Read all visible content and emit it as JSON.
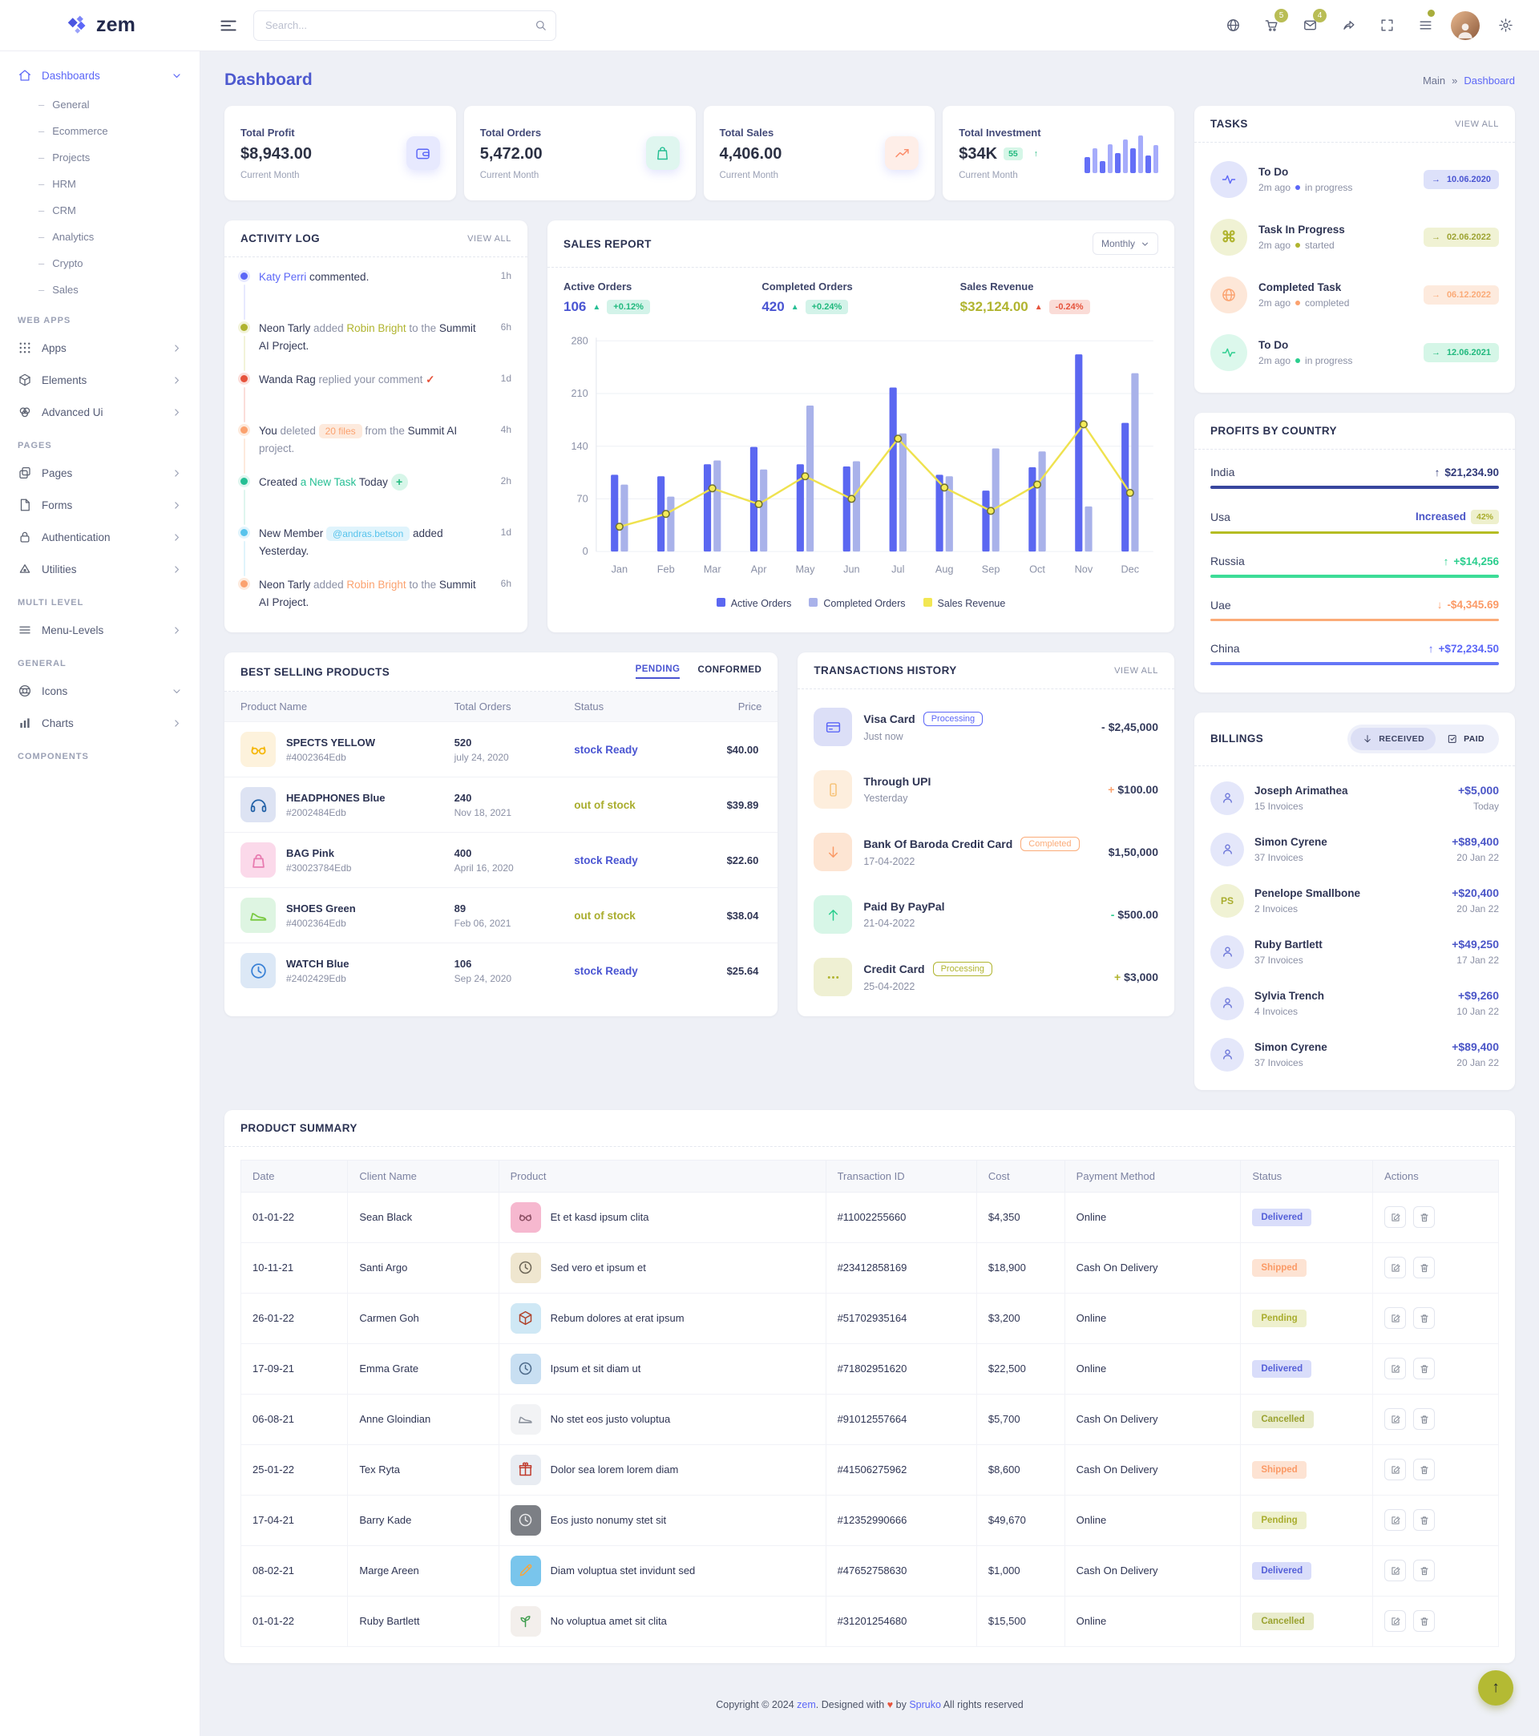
{
  "navbar": {
    "search_placeholder": "Search...",
    "badges": {
      "cart": "5",
      "mail": "4"
    }
  },
  "sidebar": {
    "brand": "zem",
    "groups": [
      {
        "label": "",
        "items": [
          {
            "label": "Dashboards",
            "icon": "home",
            "chevron": "down",
            "active": true,
            "children": [
              "General",
              "Ecommerce",
              "Projects",
              "HRM",
              "CRM",
              "Analytics",
              "Crypto",
              "Sales"
            ]
          }
        ]
      },
      {
        "label": "WEB APPS",
        "items": [
          {
            "label": "Apps",
            "icon": "grid",
            "chevron": "right"
          },
          {
            "label": "Elements",
            "icon": "cube",
            "chevron": "right"
          },
          {
            "label": "Advanced Ui",
            "icon": "venn",
            "chevron": "right"
          }
        ]
      },
      {
        "label": "PAGES",
        "items": [
          {
            "label": "Pages",
            "icon": "pages",
            "chevron": "right"
          },
          {
            "label": "Forms",
            "icon": "file",
            "chevron": "right"
          },
          {
            "label": "Authentication",
            "icon": "lock",
            "chevron": "right"
          },
          {
            "label": "Utilities",
            "icon": "utility",
            "chevron": "right"
          }
        ]
      },
      {
        "label": "MULTI LEVEL",
        "items": [
          {
            "label": "Menu-Levels",
            "icon": "menu",
            "chevron": "right"
          }
        ]
      },
      {
        "label": "GENERAL",
        "items": [
          {
            "label": "Icons",
            "icon": "sphere",
            "chevron": "down"
          },
          {
            "label": "Charts",
            "icon": "chart",
            "chevron": "right"
          }
        ]
      },
      {
        "label": "COMPONENTS",
        "items": []
      }
    ]
  },
  "page": {
    "title": "Dashboard",
    "breadcrumb_root": "Main",
    "breadcrumb_sep": "»",
    "breadcrumb_current": "Dashboard"
  },
  "stats": [
    {
      "label": "Total Profit",
      "value": "$8,943.00",
      "sub": "Current Month",
      "icon": "wallet",
      "color": "#5c67f7",
      "bg": "#e7e9fe"
    },
    {
      "label": "Total Orders",
      "value": "5,472.00",
      "sub": "Current Month",
      "icon": "bag",
      "color": "#26bf94",
      "bg": "#dff6ef"
    },
    {
      "label": "Total Sales",
      "value": "4,406.00",
      "sub": "Current Month",
      "icon": "trend",
      "color": "#fb8e6c",
      "bg": "#feeee8"
    },
    {
      "label": "Total Investment",
      "value": "$34K",
      "badge": "55",
      "badge_arrow": "↑",
      "sub": "Current Month",
      "icon": "minibars",
      "color": "#5c67f7",
      "bg": "#e7e9fe"
    }
  ],
  "minibars": [
    40,
    62,
    30,
    72,
    50,
    84,
    62,
    95,
    45,
    70
  ],
  "activity": {
    "title": "ACTIVITY LOG",
    "action": "VIEW ALL",
    "items": [
      {
        "time": "1h",
        "color": "#5c67f7",
        "bg": "#e7e9fe",
        "segments": [
          {
            "text": "Katy Perri",
            "style": "name"
          },
          {
            "text": " commented.",
            "style": "dark"
          }
        ]
      },
      {
        "time": "6h",
        "color": "#b0b42f",
        "bg": "#f2f3d9",
        "segments": [
          {
            "text": "Neon Tarly ",
            "style": "dark"
          },
          {
            "text": "added ",
            "style": "muted"
          },
          {
            "text": "Robin Bright",
            "style": "name"
          },
          {
            "text": " to the ",
            "style": "muted"
          },
          {
            "text": "Summit AI Project.",
            "style": "dark"
          }
        ]
      },
      {
        "time": "1d",
        "color": "#e6533c",
        "bg": "#fbdeda",
        "segments": [
          {
            "text": "Wanda Rag ",
            "style": "dark"
          },
          {
            "text": "replied your comment ",
            "style": "muted"
          },
          {
            "text": "✓",
            "style": "check"
          }
        ]
      },
      {
        "time": "4h",
        "color": "#fba26f",
        "bg": "#fdeadd",
        "segments": [
          {
            "text": "You ",
            "style": "dark"
          },
          {
            "text": "deleted ",
            "style": "muted"
          },
          {
            "text": "20 files",
            "style": "badge"
          },
          {
            "text": " from the ",
            "style": "muted"
          },
          {
            "text": "Summit AI",
            "style": "dark"
          },
          {
            "text": " project.",
            "style": "muted"
          }
        ]
      },
      {
        "time": "2h",
        "color": "#26bf94",
        "bg": "#dff6ef",
        "segments": [
          {
            "text": "Created ",
            "style": "dark"
          },
          {
            "text": "a New Task",
            "style": "name"
          },
          {
            "text": " Today ",
            "style": "dark"
          },
          {
            "text": "+",
            "style": "plus"
          }
        ]
      },
      {
        "time": "1d",
        "color": "#57c3ec",
        "bg": "#e0f4fc",
        "segments": [
          {
            "text": "New Member ",
            "style": "dark"
          },
          {
            "text": "@andras.betson",
            "style": "badge"
          },
          {
            "text": " added Yesterday.",
            "style": "dark"
          }
        ]
      },
      {
        "time": "6h",
        "color": "#fba26f",
        "bg": "#fdeadd",
        "segments": [
          {
            "text": "Neon Tarly ",
            "style": "dark"
          },
          {
            "text": "added ",
            "style": "muted"
          },
          {
            "text": "Robin Bright",
            "style": "name"
          },
          {
            "text": " to the ",
            "style": "muted"
          },
          {
            "text": "Summit AI Project.",
            "style": "dark"
          }
        ]
      }
    ]
  },
  "sales_report": {
    "title": "SALES REPORT",
    "dropdown": "Monthly",
    "kpis": [
      {
        "label": "Active Orders",
        "value": "106",
        "value_color": "#4a55d2",
        "arrow": "▲",
        "arrow_color": "#26bf94",
        "delta": "+0.12%",
        "delta_color": "#21b97e",
        "delta_bg": "#d3f3e9"
      },
      {
        "label": "Completed Orders",
        "value": "420",
        "value_color": "#4a55d2",
        "arrow": "▲",
        "arrow_color": "#26bf94",
        "delta": "+0.24%",
        "delta_color": "#21b97e",
        "delta_bg": "#d3f3e9"
      },
      {
        "label": "Sales Revenue",
        "value": "$32,124.00",
        "value_color": "#b0b42f",
        "arrow": "▲",
        "arrow_color": "#e6533c",
        "delta": "-0.24%",
        "delta_color": "#e6533c",
        "delta_bg": "#fadcd7"
      }
    ]
  },
  "chart_data": {
    "type": "bar+line",
    "title": "SALES REPORT",
    "categories": [
      "Jan",
      "Feb",
      "Mar",
      "Apr",
      "May",
      "Jun",
      "Jul",
      "Aug",
      "Sep",
      "Oct",
      "Nov",
      "Dec"
    ],
    "series": [
      {
        "name": "Active Orders",
        "type": "bar",
        "color": "#5b67f1",
        "values": [
          102,
          100,
          116,
          139,
          116,
          113,
          218,
          102,
          81,
          112,
          262,
          171
        ]
      },
      {
        "name": "Completed Orders",
        "type": "bar",
        "color": "#a9b2ea",
        "values": [
          89,
          73,
          121,
          109,
          194,
          120,
          157,
          100,
          137,
          133,
          60,
          237
        ]
      },
      {
        "name": "Sales Revenue",
        "type": "line",
        "color": "#f2e753",
        "values": [
          33,
          50,
          84,
          63,
          100,
          70,
          150,
          85,
          54,
          89,
          169,
          78
        ]
      }
    ],
    "ylim": [
      0,
      280
    ],
    "yticks": [
      0,
      70,
      140,
      210,
      280
    ],
    "legend_position": "bottom",
    "grid": true
  },
  "tasks": {
    "title": "TASKS",
    "action": "VIEW ALL",
    "items": [
      {
        "title": "To Do",
        "time": "2m ago",
        "status": "in progress",
        "date": "10.06.2020",
        "arrow": "→",
        "icon": "activity",
        "color": "#5c67f7",
        "bg": "#e2e5fb",
        "badge_bg": "#dde1fa",
        "badge_color": "#4a55d2"
      },
      {
        "title": "Task In Progress",
        "time": "2m ago",
        "status": "started",
        "date": "02.06.2022",
        "arrow": "→",
        "icon": "char:⌘",
        "color": "#b0b42f",
        "bg": "#f0f2d4",
        "badge_bg": "#f0f2d4",
        "badge_color": "#9da332"
      },
      {
        "title": "Completed Task",
        "time": "2m ago",
        "status": "completed",
        "date": "06.12.2022",
        "arrow": "→",
        "icon": "globe",
        "color": "#fba26f",
        "bg": "#fde7d8",
        "badge_bg": "#fdeadd",
        "badge_color": "#fbab78"
      },
      {
        "title": "To Do",
        "time": "2m ago",
        "status": "in progress",
        "date": "12.06.2021",
        "arrow": "→",
        "icon": "activity",
        "color": "#2bce8e",
        "bg": "#dcf8ec",
        "badge_bg": "#d5f6e7",
        "badge_color": "#21b97e"
      }
    ]
  },
  "profits": {
    "title": "PROFITS BY COUNTRY",
    "rows": [
      {
        "country": "India",
        "value": "$21,234.90",
        "arrow": "↑",
        "color": "#38469e",
        "value_color": "#323b7a"
      },
      {
        "country": "Usa",
        "value": "Increased",
        "badge": "42%",
        "color": "#b5bd22",
        "value_color": "#4a55c7",
        "badge_bg": "#eef0cd",
        "badge_color": "#a9ad2e"
      },
      {
        "country": "Russia",
        "value": "+$14,256",
        "arrow": "↑",
        "color": "#3ddc97",
        "value_color": "#2bce8e"
      },
      {
        "country": "Uae",
        "value": "-$4,345.69",
        "arrow": "↓",
        "color": "#fbab78",
        "value_color": "#fb9a66"
      },
      {
        "country": "China",
        "value": "+$72,234.50",
        "arrow": "↑",
        "color": "#6576f7",
        "value_color": "#5c67f7"
      }
    ]
  },
  "best_selling": {
    "title": "BEST SELLING PRODUCTS",
    "tabs": [
      {
        "label": "PENDING",
        "active": true
      },
      {
        "label": "CONFORMED",
        "active": false
      }
    ],
    "columns": [
      "Product Name",
      "Total Orders",
      "Status",
      "Price"
    ],
    "rows": [
      {
        "name": "SPECTS YELLOW",
        "sku": "#4002364Edb",
        "orders": "520",
        "date": "july 24, 2020",
        "status": "stock Ready",
        "status_color": "#4a55d2",
        "price": "$40.00",
        "icon": "glasses",
        "icon_color": "#f5b70a",
        "img_bg": "#fdf2dc"
      },
      {
        "name": "HEADPHONES Blue",
        "sku": "#2002484Edb",
        "orders": "240",
        "date": "Nov 18, 2021",
        "status": "out of stock",
        "status_color": "#a9ad2e",
        "price": "$39.89",
        "icon": "headphones",
        "icon_color": "#2563a8",
        "img_bg": "#dde3f3"
      },
      {
        "name": "BAG Pink",
        "sku": "#30023784Edb",
        "orders": "400",
        "date": "April 16, 2020",
        "status": "stock Ready",
        "status_color": "#4a55d2",
        "price": "$22.60",
        "icon": "handbag",
        "icon_color": "#e87bb0",
        "img_bg": "#fbd9ea"
      },
      {
        "name": "SHOES Green",
        "sku": "#4002364Edb",
        "orders": "89",
        "date": "Feb 06, 2021",
        "status": "out of stock",
        "status_color": "#a9ad2e",
        "price": "$38.04",
        "icon": "shoe",
        "icon_color": "#7ac943",
        "img_bg": "#def5e2"
      },
      {
        "name": "WATCH Blue",
        "sku": "#2402429Edb",
        "orders": "106",
        "date": "Sep 24, 2020",
        "status": "stock Ready",
        "status_color": "#4a55d2",
        "price": "$25.64",
        "icon": "clock",
        "icon_color": "#3b82d6",
        "img_bg": "#dce8f6"
      }
    ]
  },
  "transactions": {
    "title": "TRANSACTIONS HISTORY",
    "action": "VIEW ALL",
    "rows": [
      {
        "name": "Visa Card",
        "badge": "Processing",
        "badge_color": "#5c67f7",
        "time": "Just now",
        "sign": "-",
        "sign_color": "#3b415f",
        "amount": "$2,45,000",
        "icon": "card",
        "icon_color": "#5c67f7",
        "icon_bg": "#dcdff7"
      },
      {
        "name": "Through UPI",
        "time": "Yesterday",
        "sign": "+",
        "sign_color": "#fba26f",
        "amount": "$100.00",
        "icon": "phone",
        "icon_color": "#f6c174",
        "icon_bg": "#fdeedd"
      },
      {
        "name": "Bank Of Baroda Credit Card",
        "badge": "Completed",
        "badge_color": "#fbab78",
        "time": "17-04-2022",
        "sign": "",
        "sign_color": "#3b415f",
        "amount": "$1,50,000",
        "icon": "arrowdown",
        "icon_color": "#fb9a66",
        "icon_bg": "#fde5d3"
      },
      {
        "name": "Paid By PayPal",
        "time": "21-04-2022",
        "sign": "-",
        "sign_color": "#2bce8e",
        "amount": "$500.00",
        "icon": "arrowup",
        "icon_color": "#2bce8e",
        "icon_bg": "#d7f6e7"
      },
      {
        "name": "Credit Card",
        "badge": "Processing",
        "badge_color": "#b0b42f",
        "time": "25-04-2022",
        "sign": "+",
        "sign_color": "#b0b42f",
        "amount": "$3,000",
        "icon": "ellipsis",
        "icon_color": "#b0b42f",
        "icon_bg": "#eff0d3"
      }
    ]
  },
  "billings": {
    "title": "BILLINGS",
    "toggle": [
      {
        "label": "RECEIVED",
        "icon": "arrowdown",
        "active": true
      },
      {
        "label": "PAID",
        "icon": "checksquare",
        "active": false
      }
    ],
    "rows": [
      {
        "name": "Joseph Arimathea",
        "invoices": "15 Invoices",
        "amount": "+$5,000",
        "date": "Today",
        "avatar": "person"
      },
      {
        "name": "Simon Cyrene",
        "invoices": "37 Invoices",
        "amount": "+$89,400",
        "date": "20 Jan 22",
        "avatar": "person"
      },
      {
        "name": "Penelope Smallbone",
        "invoices": "2 Invoices",
        "amount": "+$20,400",
        "date": "20 Jan 22",
        "avatar": "PS"
      },
      {
        "name": "Ruby Bartlett",
        "invoices": "37 Invoices",
        "amount": "+$49,250",
        "date": "17 Jan 22",
        "avatar": "person"
      },
      {
        "name": "Sylvia Trench",
        "invoices": "4 Invoices",
        "amount": "+$9,260",
        "date": "10 Jan 22",
        "avatar": "person"
      },
      {
        "name": "Simon Cyrene",
        "invoices": "37 Invoices",
        "amount": "+$89,400",
        "date": "20 Jan 22",
        "avatar": "person"
      }
    ]
  },
  "product_summary": {
    "title": "PRODUCT SUMMARY",
    "columns": [
      "Date",
      "Client Name",
      "Product",
      "Transaction ID",
      "Cost",
      "Payment Method",
      "Status",
      "Actions"
    ],
    "rows": [
      {
        "date": "01-01-22",
        "client": "Sean Black",
        "product": "Et et kasd ipsum clita",
        "txn": "#11002255660",
        "cost": "$4,350",
        "method": "Online",
        "status": "Delivered",
        "status_bg": "#d9ddfa",
        "status_color": "#5560d8",
        "icon": "glasses",
        "icon_color": "#8a4d62",
        "img_bg": "#f6b8cf"
      },
      {
        "date": "10-11-21",
        "client": "Santi Argo",
        "product": "Sed vero et ipsum et",
        "txn": "#23412858169",
        "cost": "$18,900",
        "method": "Cash On Delivery",
        "status": "Shipped",
        "status_bg": "#fde3d3",
        "status_color": "#fb9a66",
        "icon": "clock",
        "icon_color": "#6b6455",
        "img_bg": "#efe6cf"
      },
      {
        "date": "26-01-22",
        "client": "Carmen Goh",
        "product": "Rebum dolores at erat ipsum",
        "txn": "#51702935164",
        "cost": "$3,200",
        "method": "Online",
        "status": "Pending",
        "status_bg": "#eef0cd",
        "status_color": "#a9ad2e",
        "icon": "cube",
        "icon_color": "#b0452e",
        "img_bg": "#cfe8f5"
      },
      {
        "date": "17-09-21",
        "client": "Emma Grate",
        "product": "Ipsum et sit diam ut",
        "txn": "#71802951620",
        "cost": "$22,500",
        "method": "Online",
        "status": "Delivered",
        "status_bg": "#d9ddfa",
        "status_color": "#5560d8",
        "icon": "clock",
        "icon_color": "#4d6a8a",
        "img_bg": "#c8dff2"
      },
      {
        "date": "06-08-21",
        "client": "Anne Gloindian",
        "product": "No stet eos justo voluptua",
        "txn": "#91012557664",
        "cost": "$5,700",
        "method": "Cash On Delivery",
        "status": "Cancelled",
        "status_bg": "#e9eccd",
        "status_color": "#9aa230",
        "icon": "shoe",
        "icon_color": "#8d939e",
        "img_bg": "#f2f3f5"
      },
      {
        "date": "25-01-22",
        "client": "Tex Ryta",
        "product": "Dolor sea lorem lorem diam",
        "txn": "#41506275962",
        "cost": "$8,600",
        "method": "Cash On Delivery",
        "status": "Shipped",
        "status_bg": "#fde3d3",
        "status_color": "#fb9a66",
        "icon": "gift",
        "icon_color": "#c0392b",
        "img_bg": "#e8ecf2"
      },
      {
        "date": "17-04-21",
        "client": "Barry Kade",
        "product": "Eos justo nonumy stet sit",
        "txn": "#12352990666",
        "cost": "$49,670",
        "method": "Online",
        "status": "Pending",
        "status_bg": "#eef0cd",
        "status_color": "#a9ad2e",
        "icon": "clock",
        "icon_color": "#e8e8ea",
        "img_bg": "#7c7f85"
      },
      {
        "date": "08-02-21",
        "client": "Marge Areen",
        "product": "Diam voluptua stet invidunt sed",
        "txn": "#47652758630",
        "cost": "$1,000",
        "method": "Cash On Delivery",
        "status": "Delivered",
        "status_bg": "#d9ddfa",
        "status_color": "#5560d8",
        "icon": "pencil",
        "icon_color": "#f5a641",
        "img_bg": "#79c5ec"
      },
      {
        "date": "01-01-22",
        "client": "Ruby Bartlett",
        "product": "No voluptua amet sit clita",
        "txn": "#31201254680",
        "cost": "$15,500",
        "method": "Online",
        "status": "Cancelled",
        "status_bg": "#e9eccd",
        "status_color": "#9aa230",
        "icon": "plant",
        "icon_color": "#3f9d4e",
        "img_bg": "#f3efec"
      }
    ]
  },
  "footer": {
    "pre": "Copyright © 2024 ",
    "brand": "zem",
    "mid": ". Designed with ",
    "heart": "♥",
    "by": " by ",
    "brand2": "Spruko",
    "post": " All rights reserved"
  },
  "scroll_top_arrow": "↑"
}
